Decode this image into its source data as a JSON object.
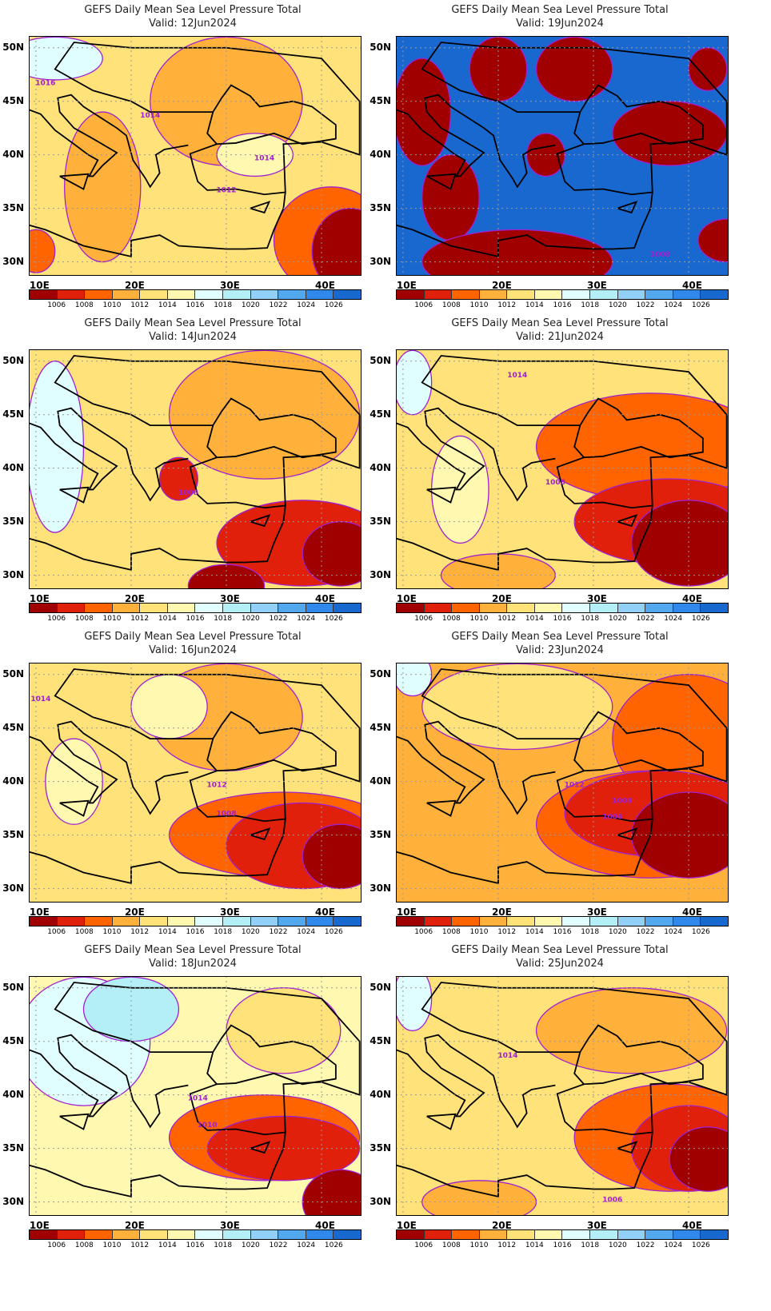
{
  "title": "GEFS Daily Mean Sea Level Pressure Total",
  "valid_prefix": "Valid: ",
  "panels": [
    {
      "date": "12Jun2024",
      "contour_labels": [
        "1016",
        "1014",
        "1014",
        "1012"
      ]
    },
    {
      "date": "19Jun2024",
      "contour_labels": [
        "1008"
      ]
    },
    {
      "date": "14Jun2024",
      "contour_labels": [
        "1008"
      ]
    },
    {
      "date": "21Jun2024",
      "contour_labels": [
        "1014",
        "1008"
      ]
    },
    {
      "date": "16Jun2024",
      "contour_labels": [
        "1014",
        "1012",
        "1008"
      ]
    },
    {
      "date": "23Jun2024",
      "contour_labels": [
        "1012",
        "1008",
        "1006"
      ]
    },
    {
      "date": "18Jun2024",
      "contour_labels": [
        "1014",
        "1010"
      ]
    },
    {
      "date": "25Jun2024",
      "contour_labels": [
        "1014",
        "1006"
      ]
    }
  ],
  "lat_ticks": [
    "30N",
    "35N",
    "40N",
    "45N",
    "50N"
  ],
  "lon_ticks": [
    "10E",
    "20E",
    "30E",
    "40E"
  ],
  "colorbar": {
    "levels": [
      "1006",
      "1008",
      "1010",
      "1012",
      "1014",
      "1016",
      "1018",
      "1020",
      "1022",
      "1024",
      "1026"
    ],
    "colors": [
      "#a00000",
      "#e0200a",
      "#ff6400",
      "#ffb13b",
      "#ffe37a",
      "#fff8b0",
      "#e0fdff",
      "#b4eef7",
      "#92d0f7",
      "#52a7ee",
      "#2f88ea",
      "#1868d0"
    ]
  },
  "contour_color": "#a020d0"
}
